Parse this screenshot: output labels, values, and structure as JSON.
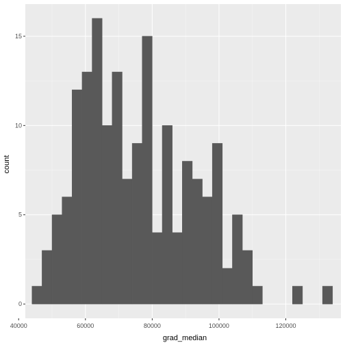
{
  "chart_data": {
    "type": "bar",
    "xlabel": "grad_median",
    "ylabel": "count",
    "xlim": [
      42000,
      136500
    ],
    "ylim": [
      -0.8,
      16.8
    ],
    "x_ticks": [
      40000,
      60000,
      80000,
      100000,
      120000
    ],
    "y_ticks": [
      0,
      5,
      10,
      15
    ],
    "grid": true,
    "bins": {
      "start": 44000,
      "width": 3000,
      "counts": [
        1,
        3,
        5,
        6,
        12,
        13,
        16,
        10,
        13,
        7,
        9,
        15,
        4,
        10,
        4,
        8,
        7,
        6,
        9,
        2,
        5,
        3,
        1,
        0,
        0,
        0,
        1,
        0,
        0,
        1
      ]
    },
    "colors": {
      "panel": "#ebebeb",
      "grid_major": "#ffffff",
      "bar_fill": "#595959",
      "tick_text": "#4d4d4d"
    }
  }
}
